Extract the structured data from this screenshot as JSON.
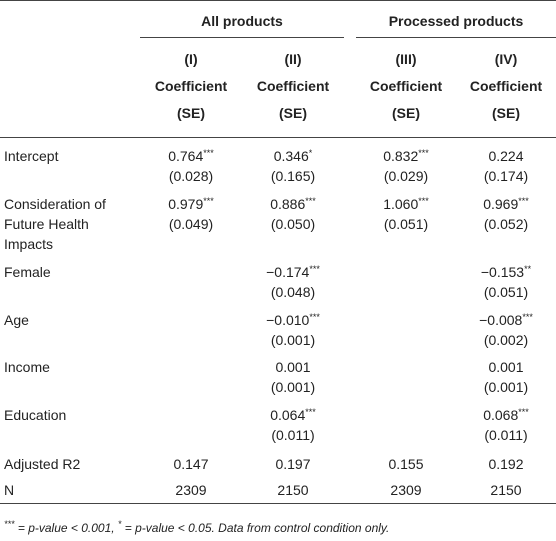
{
  "groups": [
    {
      "label": "All products"
    },
    {
      "label": "Processed products"
    }
  ],
  "columns": [
    {
      "num": "(I)",
      "title": "Coefficient",
      "sub": "(SE)"
    },
    {
      "num": "(II)",
      "title": "Coefficient",
      "sub": "(SE)"
    },
    {
      "num": "(III)",
      "title": "Coefficient",
      "sub": "(SE)"
    },
    {
      "num": "(IV)",
      "title": "Coefficient",
      "sub": "(SE)"
    }
  ],
  "rows": [
    {
      "label": [
        "Intercept"
      ],
      "cells": [
        {
          "coef": "0.764",
          "sig": "***",
          "se": "(0.028)"
        },
        {
          "coef": "0.346",
          "sig": "*",
          "se": "(0.165)"
        },
        {
          "coef": "0.832",
          "sig": "***",
          "se": "(0.029)"
        },
        {
          "coef": "0.224",
          "sig": "",
          "se": "(0.174)"
        }
      ]
    },
    {
      "label": [
        "Consideration of",
        "Future Health",
        "Impacts"
      ],
      "cells": [
        {
          "coef": "0.979",
          "sig": "***",
          "se": "(0.049)"
        },
        {
          "coef": "0.886",
          "sig": "***",
          "se": "(0.050)"
        },
        {
          "coef": "1.060",
          "sig": "***",
          "se": "(0.051)"
        },
        {
          "coef": "0.969",
          "sig": "***",
          "se": "(0.052)"
        }
      ]
    },
    {
      "label": [
        "Female"
      ],
      "cells": [
        {
          "coef": "",
          "sig": "",
          "se": ""
        },
        {
          "coef": "−0.174",
          "sig": "***",
          "se": "(0.048)"
        },
        {
          "coef": "",
          "sig": "",
          "se": ""
        },
        {
          "coef": "−0.153",
          "sig": "**",
          "se": "(0.051)"
        }
      ]
    },
    {
      "label": [
        "Age"
      ],
      "cells": [
        {
          "coef": "",
          "sig": "",
          "se": ""
        },
        {
          "coef": "−0.010",
          "sig": "***",
          "se": "(0.001)"
        },
        {
          "coef": "",
          "sig": "",
          "se": ""
        },
        {
          "coef": "−0.008",
          "sig": "***",
          "se": "(0.002)"
        }
      ]
    },
    {
      "label": [
        "Income"
      ],
      "cells": [
        {
          "coef": "",
          "sig": "",
          "se": ""
        },
        {
          "coef": "0.001",
          "sig": "",
          "se": "(0.001)"
        },
        {
          "coef": "",
          "sig": "",
          "se": ""
        },
        {
          "coef": "0.001",
          "sig": "",
          "se": "(0.001)"
        }
      ]
    },
    {
      "label": [
        "Education"
      ],
      "cells": [
        {
          "coef": "",
          "sig": "",
          "se": ""
        },
        {
          "coef": "0.064",
          "sig": "***",
          "se": "(0.011)"
        },
        {
          "coef": "",
          "sig": "",
          "se": ""
        },
        {
          "coef": "0.068",
          "sig": "***",
          "se": "(0.011)"
        }
      ]
    }
  ],
  "summary": [
    {
      "label": "Adjusted R2",
      "values": [
        "0.147",
        "0.197",
        "0.155",
        "0.192"
      ]
    },
    {
      "label": "N",
      "values": [
        "2309",
        "2150",
        "2309",
        "2150"
      ]
    }
  ],
  "footnote": {
    "sig1": "***",
    "text1": " = p-value < 0.001, ",
    "sig2": "*",
    "text2": " = p-value < 0.05. Data from control condition only."
  }
}
